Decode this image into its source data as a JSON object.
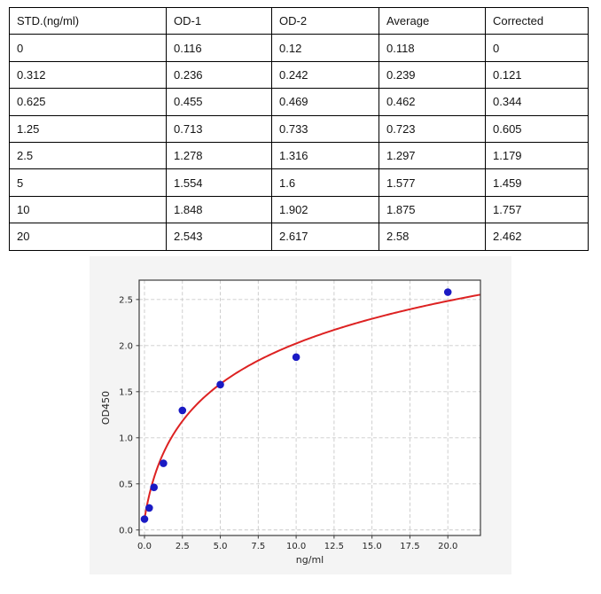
{
  "table": {
    "columns": [
      "STD.(ng/ml)",
      "OD-1",
      "OD-2",
      "Average",
      "Corrected"
    ],
    "rows": [
      [
        "0",
        "0.116",
        "0.12",
        "0.118",
        "0"
      ],
      [
        "0.312",
        "0.236",
        "0.242",
        "0.239",
        "0.121"
      ],
      [
        "0.625",
        "0.455",
        "0.469",
        "0.462",
        "0.344"
      ],
      [
        "1.25",
        "0.713",
        "0.733",
        "0.723",
        "0.605"
      ],
      [
        "2.5",
        "1.278",
        "1.316",
        "1.297",
        "1.179"
      ],
      [
        "5",
        "1.554",
        "1.6",
        "1.577",
        "1.459"
      ],
      [
        "10",
        "1.848",
        "1.902",
        "1.875",
        "1.757"
      ],
      [
        "20",
        "2.543",
        "2.617",
        "2.58",
        "2.462"
      ]
    ]
  },
  "chart_data": {
    "type": "scatter",
    "title": "",
    "xlabel": "ng/ml",
    "ylabel": "OD450",
    "x": [
      0,
      0.312,
      0.625,
      1.25,
      2.5,
      5,
      10,
      20
    ],
    "y": [
      0.118,
      0.239,
      0.462,
      0.723,
      1.297,
      1.577,
      1.875,
      2.58
    ],
    "fit_curve": {
      "description": "logarithmic fit through standards",
      "formula": "y = 0.698*ln(x + 0.7) + 0.369",
      "a": 0.698,
      "b": 0.7,
      "c": 0.369,
      "x_start": 0,
      "x_end": 22.15
    },
    "xticks": [
      0,
      2.5,
      5,
      7.5,
      10,
      12.5,
      15,
      17.5,
      20
    ],
    "yticks": [
      0,
      0.5,
      1,
      1.5,
      2,
      2.5
    ],
    "xlim": [
      -0.35,
      22.15
    ],
    "ylim": [
      -0.06,
      2.71
    ],
    "grid": true,
    "legend": null,
    "colors": {
      "point": "#1a1ac4",
      "curve": "#dd2222",
      "grid": "#c9c9c9",
      "spine": "#3c3c3c",
      "tick_text": "#262626",
      "panel_bg": "#f4f4f4",
      "plot_bg": "#ffffff"
    }
  }
}
